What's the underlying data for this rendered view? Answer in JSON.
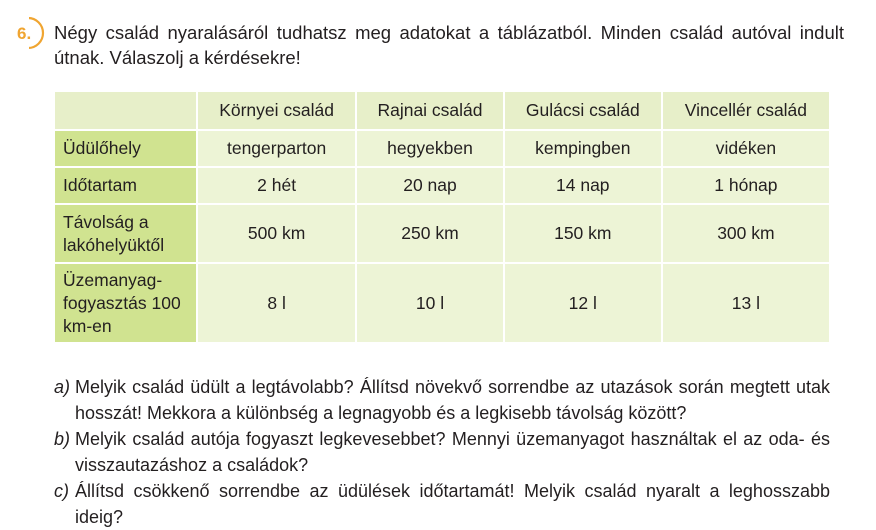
{
  "task": {
    "number": "6.",
    "intro": "Négy család nyaralásáról tudhatsz meg adatokat a táblázatból. Minden család autóval indult útnak. Válaszolj a kérdésekre!"
  },
  "table": {
    "columns": [
      "Környei család",
      "Rajnai család",
      "Gulácsi család",
      "Vincellér család"
    ],
    "rows": [
      {
        "label": "Üdülőhely",
        "cells": [
          "tengerparton",
          "hegyekben",
          "kempingben",
          "vidéken"
        ]
      },
      {
        "label": "Időtartam",
        "cells": [
          "2 hét",
          "20 nap",
          "14 nap",
          "1 hónap"
        ]
      },
      {
        "label": "Távolság a lakóhelyüktől",
        "cells": [
          "500 km",
          "250 km",
          "150 km",
          "300 km"
        ]
      },
      {
        "label": "Üzemanyag-fogyasztás 100 km-en",
        "cells": [
          "8 l",
          "10 l",
          "12 l",
          "13 l"
        ]
      }
    ]
  },
  "questions": [
    {
      "letter": "a)",
      "text": "Melyik család üdült a legtávolabb? Állítsd növekvő sorrendbe az utazások során megtett utak hosszát! Mekkora a különbség a legnagyobb és a legkisebb távolság között?"
    },
    {
      "letter": "b)",
      "text": "Melyik család autója fogyaszt legkevesebbet? Mennyi üzemanyagot használtak el az oda- és visszautazáshoz a családok?"
    },
    {
      "letter": "c)",
      "text": "Állítsd csökkenő sorrendbe az üdülések időtartamát! Melyik család nyaralt a leghosszabb ideig?"
    }
  ],
  "colors": {
    "accent": "#f0a531",
    "header_fill": "#d0e390",
    "cell_fill": "#edf4d6"
  }
}
